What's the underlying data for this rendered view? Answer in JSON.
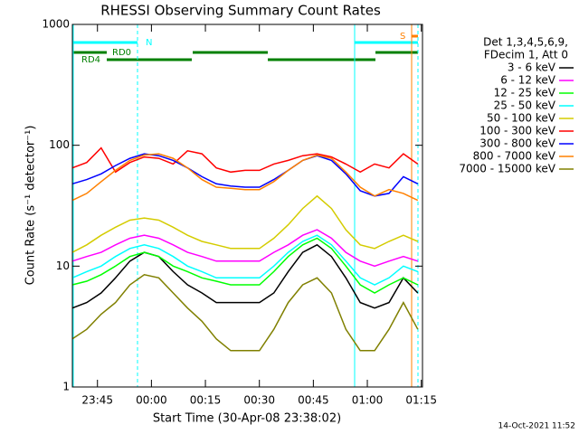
{
  "chart_data": {
    "type": "line",
    "title": "RHESSI Observing Summary Count Rates",
    "xlabel": "Start Time (30-Apr-08 23:38:02)",
    "ylabel": "Count Rate (s⁻¹ detector⁻¹)",
    "log_y": true,
    "xlim": [
      0,
      97.3
    ],
    "xticks": [
      {
        "value": 6.97,
        "label": "23:45"
      },
      {
        "value": 21.97,
        "label": "00:00"
      },
      {
        "value": 36.97,
        "label": "00:15"
      },
      {
        "value": 51.97,
        "label": "00:30"
      },
      {
        "value": 66.97,
        "label": "00:45"
      },
      {
        "value": 81.97,
        "label": "01:00"
      },
      {
        "value": 96.97,
        "label": "01:15"
      }
    ],
    "ylim": [
      1,
      1000
    ],
    "yticks": [
      1,
      10,
      100,
      1000
    ],
    "legend_title": [
      "Det 1,3,4,5,6,9,",
      "FDecim 1, Att 0"
    ],
    "annotations": [
      "N",
      "RD0",
      "RD4",
      "S"
    ],
    "footer": "14-Oct-2021 11:52",
    "x": [
      0,
      4,
      8,
      12,
      16,
      20,
      24,
      28,
      32,
      36,
      40,
      44,
      48,
      52,
      56,
      60,
      64,
      68,
      72,
      76,
      80,
      84,
      88,
      92,
      96
    ],
    "series": [
      {
        "name": "3 - 6 keV",
        "color": "#000000",
        "values": [
          4.5,
          5,
          6,
          8,
          11,
          13,
          12,
          9,
          7,
          6,
          5,
          5,
          5,
          5,
          6,
          9,
          13,
          15,
          12,
          8,
          5,
          4.5,
          5,
          8,
          6
        ]
      },
      {
        "name": "6 - 12 keV",
        "color": "#ff00ff",
        "values": [
          11,
          12,
          13,
          15,
          17,
          18,
          17,
          15,
          13,
          12,
          11,
          11,
          11,
          11,
          13,
          15,
          18,
          20,
          17,
          13,
          11,
          10,
          11,
          12,
          11
        ]
      },
      {
        "name": "12 - 25 keV",
        "color": "#00ff00",
        "values": [
          7,
          7.5,
          8.5,
          10,
          12,
          13,
          12,
          10,
          9,
          8,
          7.5,
          7,
          7,
          7,
          9,
          12,
          15,
          17,
          14,
          10,
          7,
          6,
          7,
          8,
          7
        ]
      },
      {
        "name": "25 - 50 keV",
        "color": "#00ffff",
        "values": [
          8,
          9,
          10,
          12,
          14,
          15,
          14,
          12,
          10,
          9,
          8,
          8,
          8,
          8,
          10,
          13,
          16,
          18,
          15,
          11,
          8,
          7,
          8,
          10,
          9
        ]
      },
      {
        "name": "50 - 100 keV",
        "color": "#d4cc00",
        "values": [
          13,
          15,
          18,
          21,
          24,
          25,
          24,
          21,
          18,
          16,
          15,
          14,
          14,
          14,
          17,
          22,
          30,
          38,
          30,
          20,
          15,
          14,
          16,
          18,
          16
        ]
      },
      {
        "name": "100 - 300 keV",
        "color": "#ff0000",
        "values": [
          65,
          72,
          95,
          60,
          72,
          80,
          78,
          70,
          90,
          85,
          65,
          60,
          62,
          62,
          70,
          75,
          82,
          85,
          80,
          70,
          60,
          70,
          65,
          85,
          70
        ]
      },
      {
        "name": "300 - 800 keV",
        "color": "#0000ff",
        "values": [
          48,
          52,
          58,
          68,
          78,
          85,
          82,
          75,
          65,
          55,
          48,
          46,
          45,
          45,
          52,
          62,
          75,
          82,
          75,
          58,
          42,
          38,
          40,
          55,
          48
        ]
      },
      {
        "name": "800 - 7000 keV",
        "color": "#ff8000",
        "values": [
          35,
          40,
          50,
          62,
          75,
          83,
          85,
          78,
          65,
          52,
          45,
          44,
          43,
          43,
          50,
          62,
          75,
          83,
          78,
          60,
          45,
          38,
          43,
          40,
          35
        ]
      },
      {
        "name": "7000 - 15000 keV",
        "color": "#808000",
        "values": [
          2.5,
          3,
          4,
          5,
          7,
          8.5,
          8,
          6,
          4.5,
          3.5,
          2.5,
          2,
          2,
          2,
          3,
          5,
          7,
          8,
          6,
          3,
          2,
          2,
          3,
          5,
          3
        ]
      }
    ]
  }
}
